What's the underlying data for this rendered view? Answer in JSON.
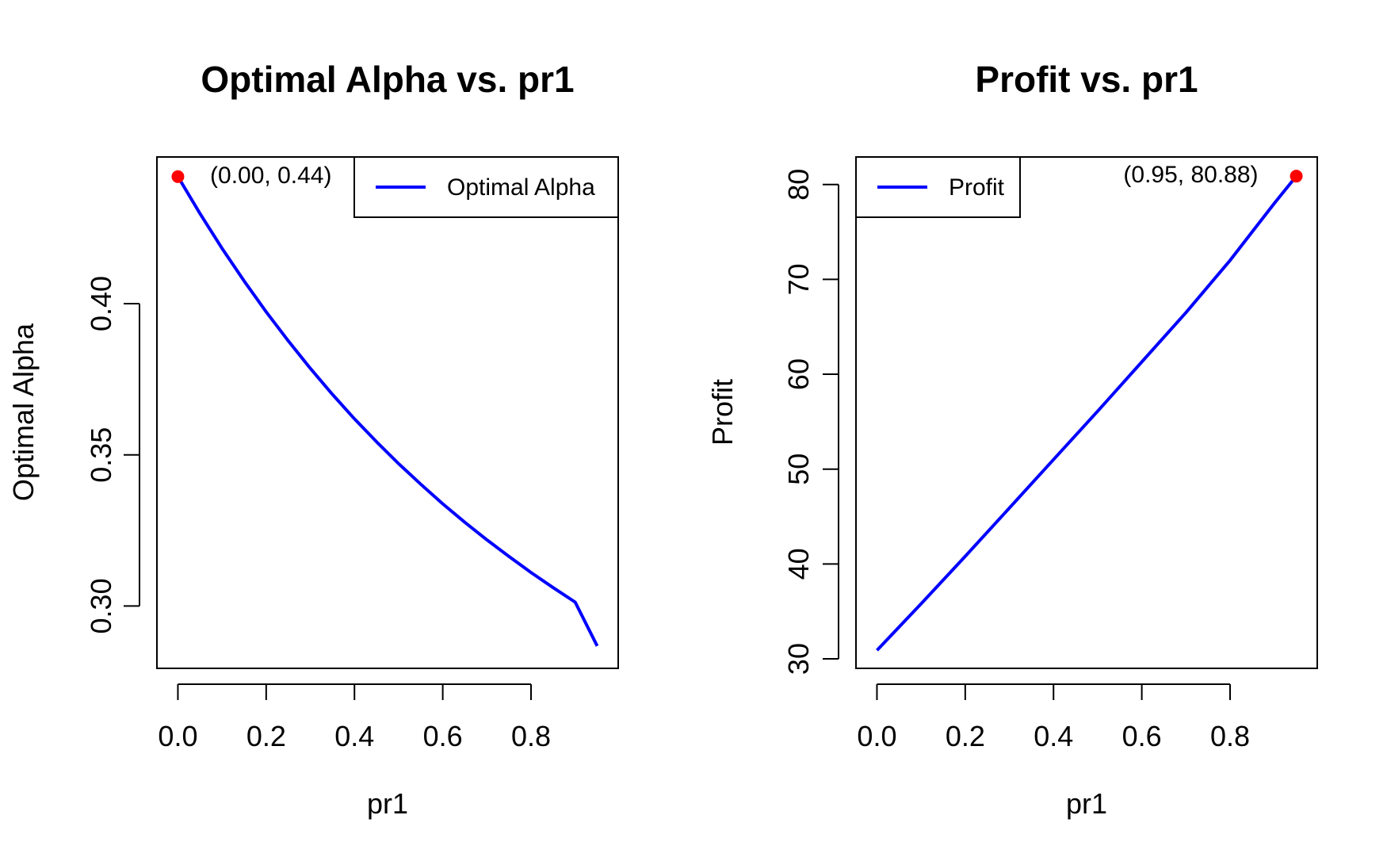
{
  "chart_data": [
    {
      "type": "line",
      "title": "Optimal Alpha vs. pr1",
      "xlabel": "pr1",
      "ylabel": "Optimal Alpha",
      "xlim": [
        -0.0475,
        0.9975
      ],
      "ylim": [
        0.2794,
        0.4485
      ],
      "xticks": [
        0.0,
        0.2,
        0.4,
        0.6,
        0.8
      ],
      "xtick_labels": [
        "0.0",
        "0.2",
        "0.4",
        "0.6",
        "0.8"
      ],
      "yticks": [
        0.3,
        0.35,
        0.4
      ],
      "ytick_labels": [
        "0.30",
        "0.35",
        "0.40"
      ],
      "grid": false,
      "legend": {
        "position": "top-right",
        "entries": [
          "Optimal Alpha"
        ]
      },
      "series": [
        {
          "name": "Optimal Alpha",
          "color": "#0000FF",
          "x": [
            0.0,
            0.05,
            0.1,
            0.15,
            0.2,
            0.25,
            0.3,
            0.35,
            0.4,
            0.45,
            0.5,
            0.55,
            0.6,
            0.65,
            0.7,
            0.75,
            0.8,
            0.85,
            0.9,
            0.95
          ],
          "y": [
            0.442,
            0.4298,
            0.4183,
            0.4075,
            0.3973,
            0.3877,
            0.3786,
            0.37,
            0.3619,
            0.3543,
            0.3471,
            0.3403,
            0.3338,
            0.3277,
            0.3219,
            0.3164,
            0.3111,
            0.3061,
            0.3013,
            0.2868
          ]
        }
      ],
      "highlight_point": {
        "x": 0.0,
        "y": 0.442,
        "color": "#FF0000",
        "label": "(0.00, 0.44)"
      }
    },
    {
      "type": "line",
      "title": "Profit vs. pr1",
      "xlabel": "pr1",
      "ylabel": "Profit",
      "xlim": [
        -0.0475,
        0.9975
      ],
      "ylim": [
        29.0,
        82.9
      ],
      "xticks": [
        0.0,
        0.2,
        0.4,
        0.6,
        0.8
      ],
      "xtick_labels": [
        "0.0",
        "0.2",
        "0.4",
        "0.6",
        "0.8"
      ],
      "yticks": [
        30,
        40,
        50,
        60,
        70,
        80
      ],
      "ytick_labels": [
        "30",
        "40",
        "50",
        "60",
        "70",
        "80"
      ],
      "grid": false,
      "legend": {
        "position": "top-left",
        "entries": [
          "Profit"
        ]
      },
      "series": [
        {
          "name": "Profit",
          "color": "#0000FF",
          "x": [
            0.0,
            0.1,
            0.2,
            0.3,
            0.4,
            0.5,
            0.6,
            0.7,
            0.8,
            0.9,
            0.95
          ],
          "y": [
            30.9,
            35.8,
            40.8,
            45.9,
            51.0,
            56.1,
            61.3,
            66.5,
            72.0,
            78.0,
            80.88
          ]
        }
      ],
      "highlight_point": {
        "x": 0.95,
        "y": 80.88,
        "color": "#FF0000",
        "label": "(0.95, 80.88)"
      }
    }
  ]
}
